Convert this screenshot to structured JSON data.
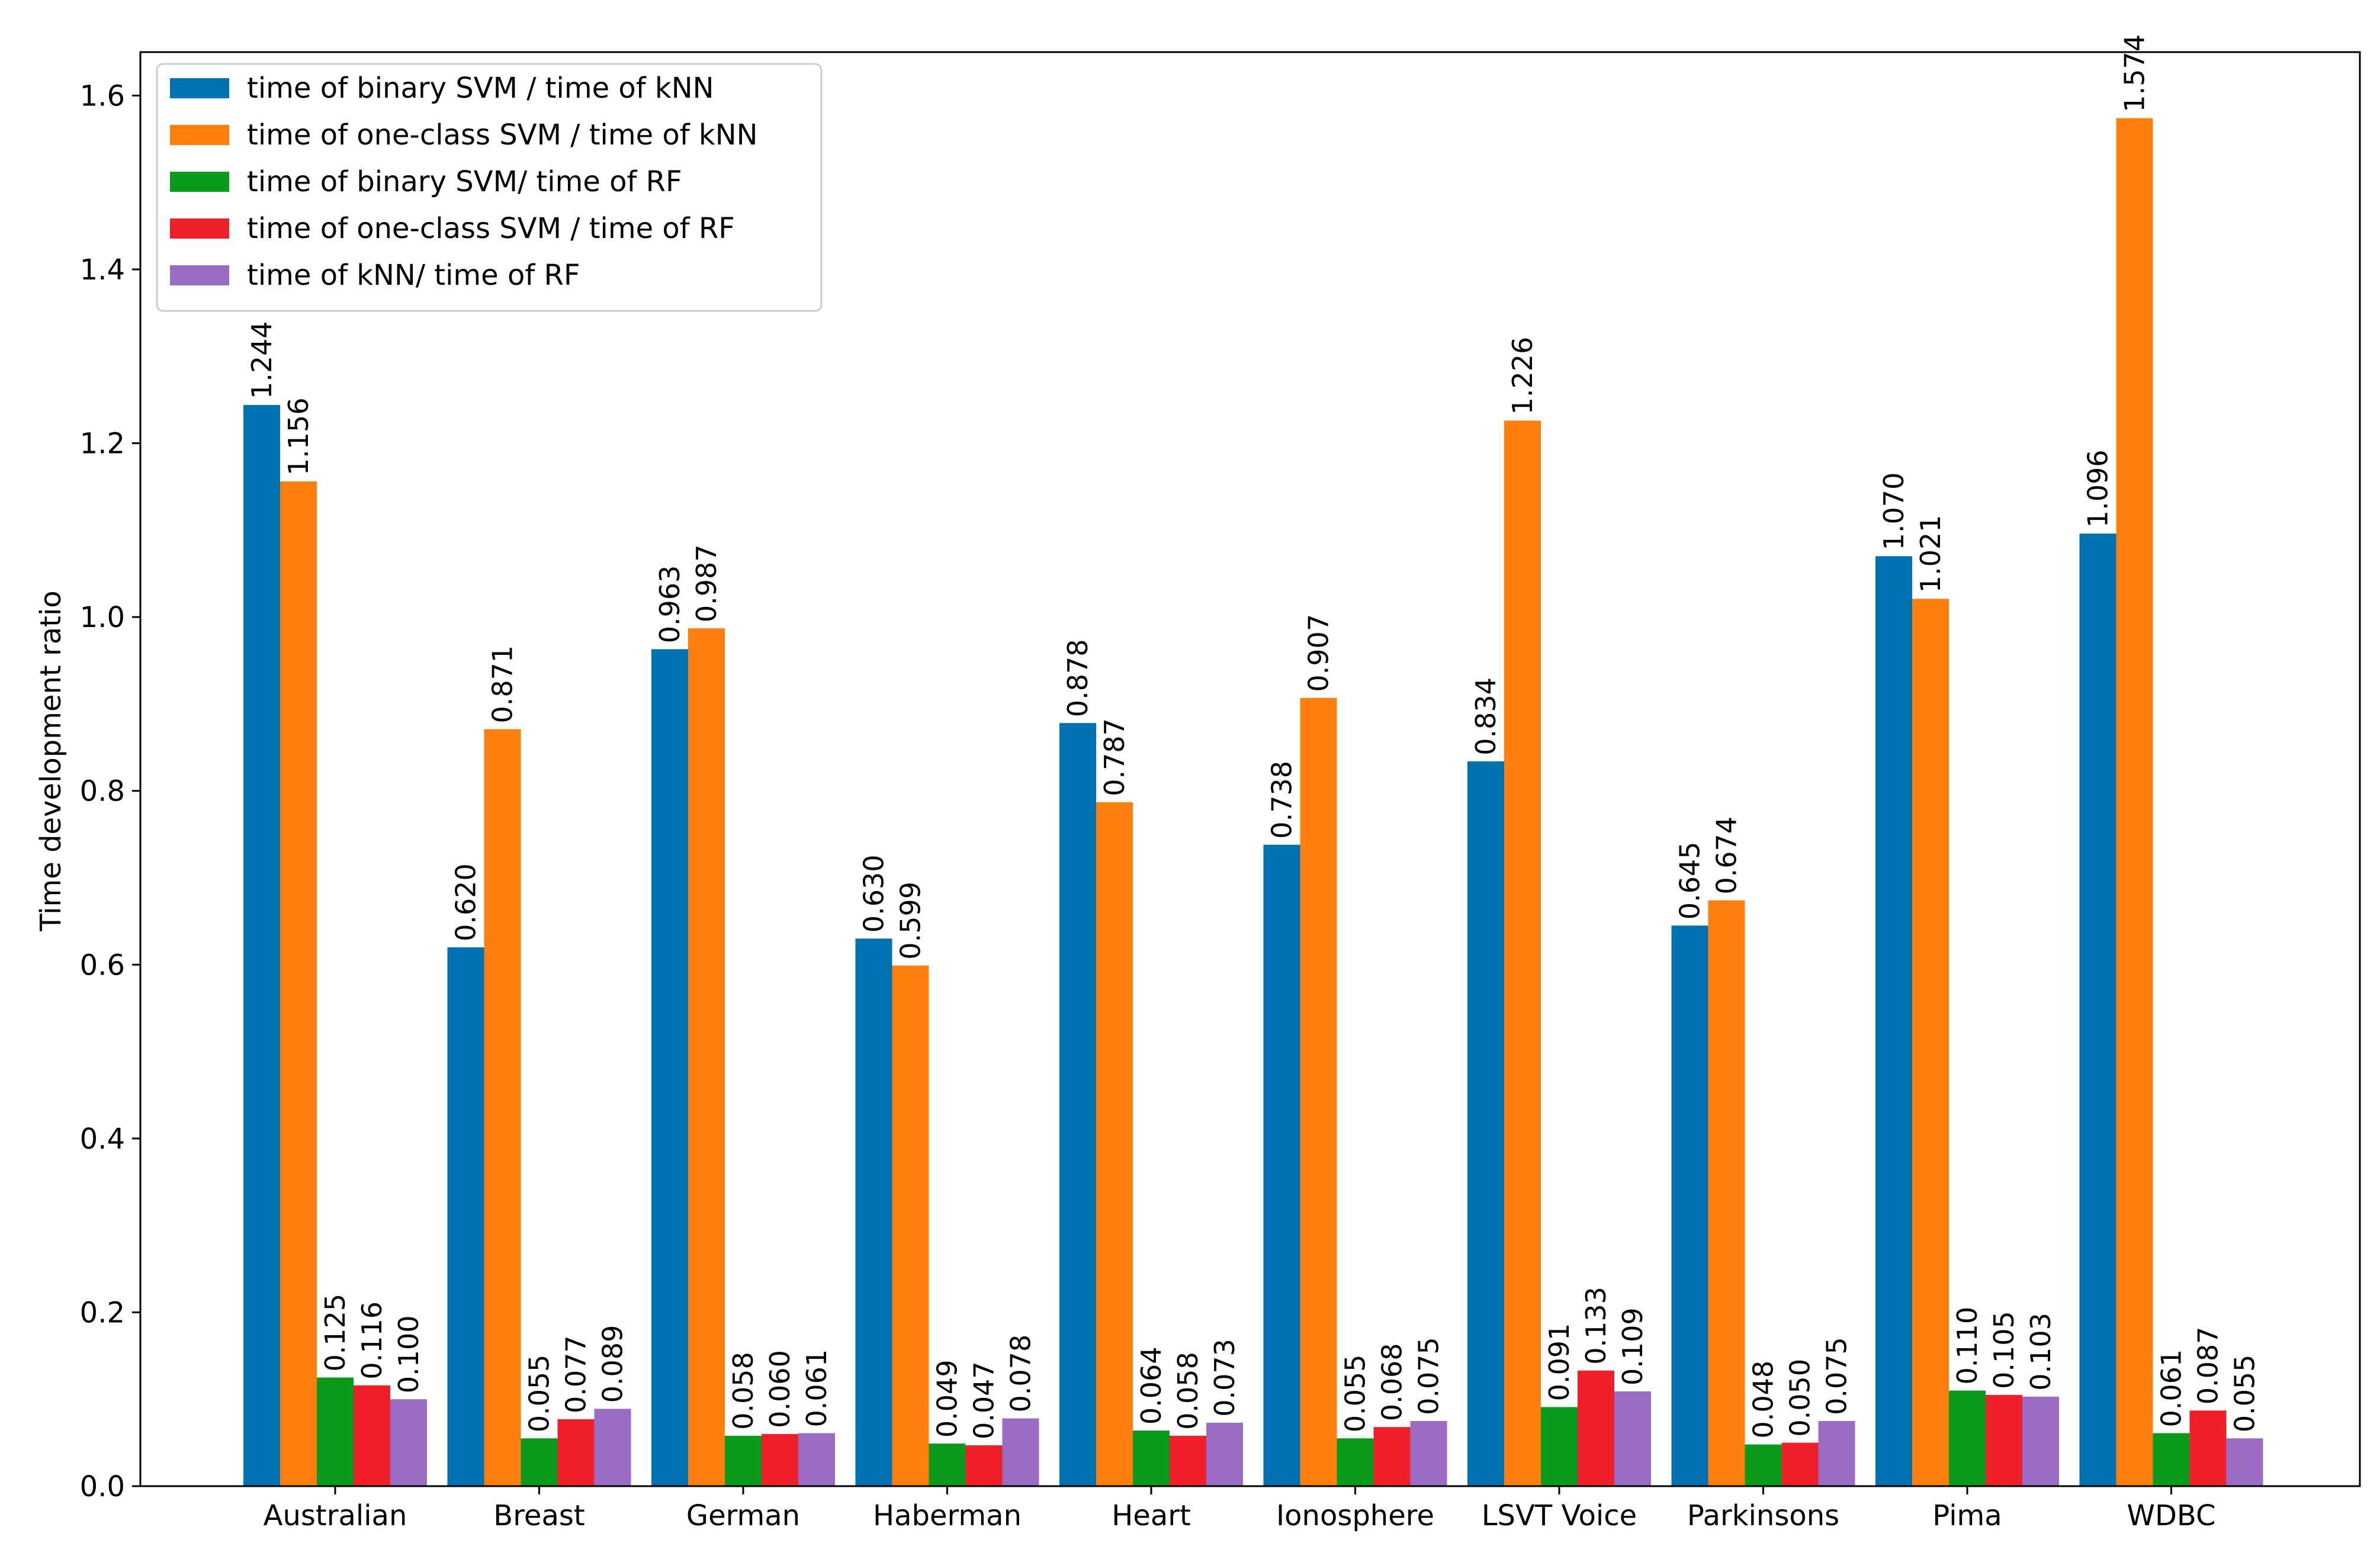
{
  "chart_data": {
    "type": "bar",
    "title": "",
    "xlabel": "",
    "ylabel": "Time development ratio",
    "ylim": [
      0,
      1.65
    ],
    "yticks": [
      "0.0",
      "0.2",
      "0.4",
      "0.6",
      "0.8",
      "1.0",
      "1.2",
      "1.4",
      "1.6"
    ],
    "categories": [
      "Australian",
      "Breast",
      "German",
      "Haberman",
      "Heart",
      "Ionosphere",
      "LSVT Voice",
      "Parkinsons",
      "Pima",
      "WDBC"
    ],
    "legend_position": "top-left",
    "grid": false,
    "series": [
      {
        "name": "time of binary SVM / time of kNN",
        "color": "#0072b2",
        "values": [
          1.244,
          0.62,
          0.963,
          0.63,
          0.878,
          0.738,
          0.834,
          0.645,
          1.07,
          1.096
        ],
        "labels": [
          "1.244",
          "0.620",
          "0.963",
          "0.630",
          "0.878",
          "0.738",
          "0.834",
          "0.645",
          "1.070",
          "1.096"
        ]
      },
      {
        "name": "time of one-class SVM / time of kNN",
        "color": "#ff7f0e",
        "values": [
          1.156,
          0.871,
          0.987,
          0.599,
          0.787,
          0.907,
          1.226,
          0.674,
          1.021,
          1.574
        ],
        "labels": [
          "1.156",
          "0.871",
          "0.987",
          "0.599",
          "0.787",
          "0.907",
          "1.226",
          "0.674",
          "1.021",
          "1.574"
        ]
      },
      {
        "name": "time of binary SVM/ time of RF",
        "color": "#0b9b1c",
        "values": [
          0.125,
          0.055,
          0.058,
          0.049,
          0.064,
          0.055,
          0.091,
          0.048,
          0.11,
          0.061
        ],
        "labels": [
          "0.125",
          "0.055",
          "0.058",
          "0.049",
          "0.064",
          "0.055",
          "0.091",
          "0.048",
          "0.110",
          "0.061"
        ]
      },
      {
        "name": "time of one-class SVM / time of RF",
        "color": "#f0202a",
        "values": [
          0.116,
          0.077,
          0.06,
          0.047,
          0.058,
          0.068,
          0.133,
          0.05,
          0.105,
          0.087
        ],
        "labels": [
          "0.116",
          "0.077",
          "0.060",
          "0.047",
          "0.058",
          "0.068",
          "0.133",
          "0.050",
          "0.105",
          "0.087"
        ]
      },
      {
        "name": "time of kNN/ time of RF",
        "color": "#9b6cc4",
        "values": [
          0.1,
          0.089,
          0.061,
          0.078,
          0.073,
          0.075,
          0.109,
          0.075,
          0.103,
          0.055
        ],
        "labels": [
          "0.100",
          "0.089",
          "0.061",
          "0.078",
          "0.073",
          "0.075",
          "0.109",
          "0.075",
          "0.103",
          "0.055"
        ]
      }
    ]
  }
}
